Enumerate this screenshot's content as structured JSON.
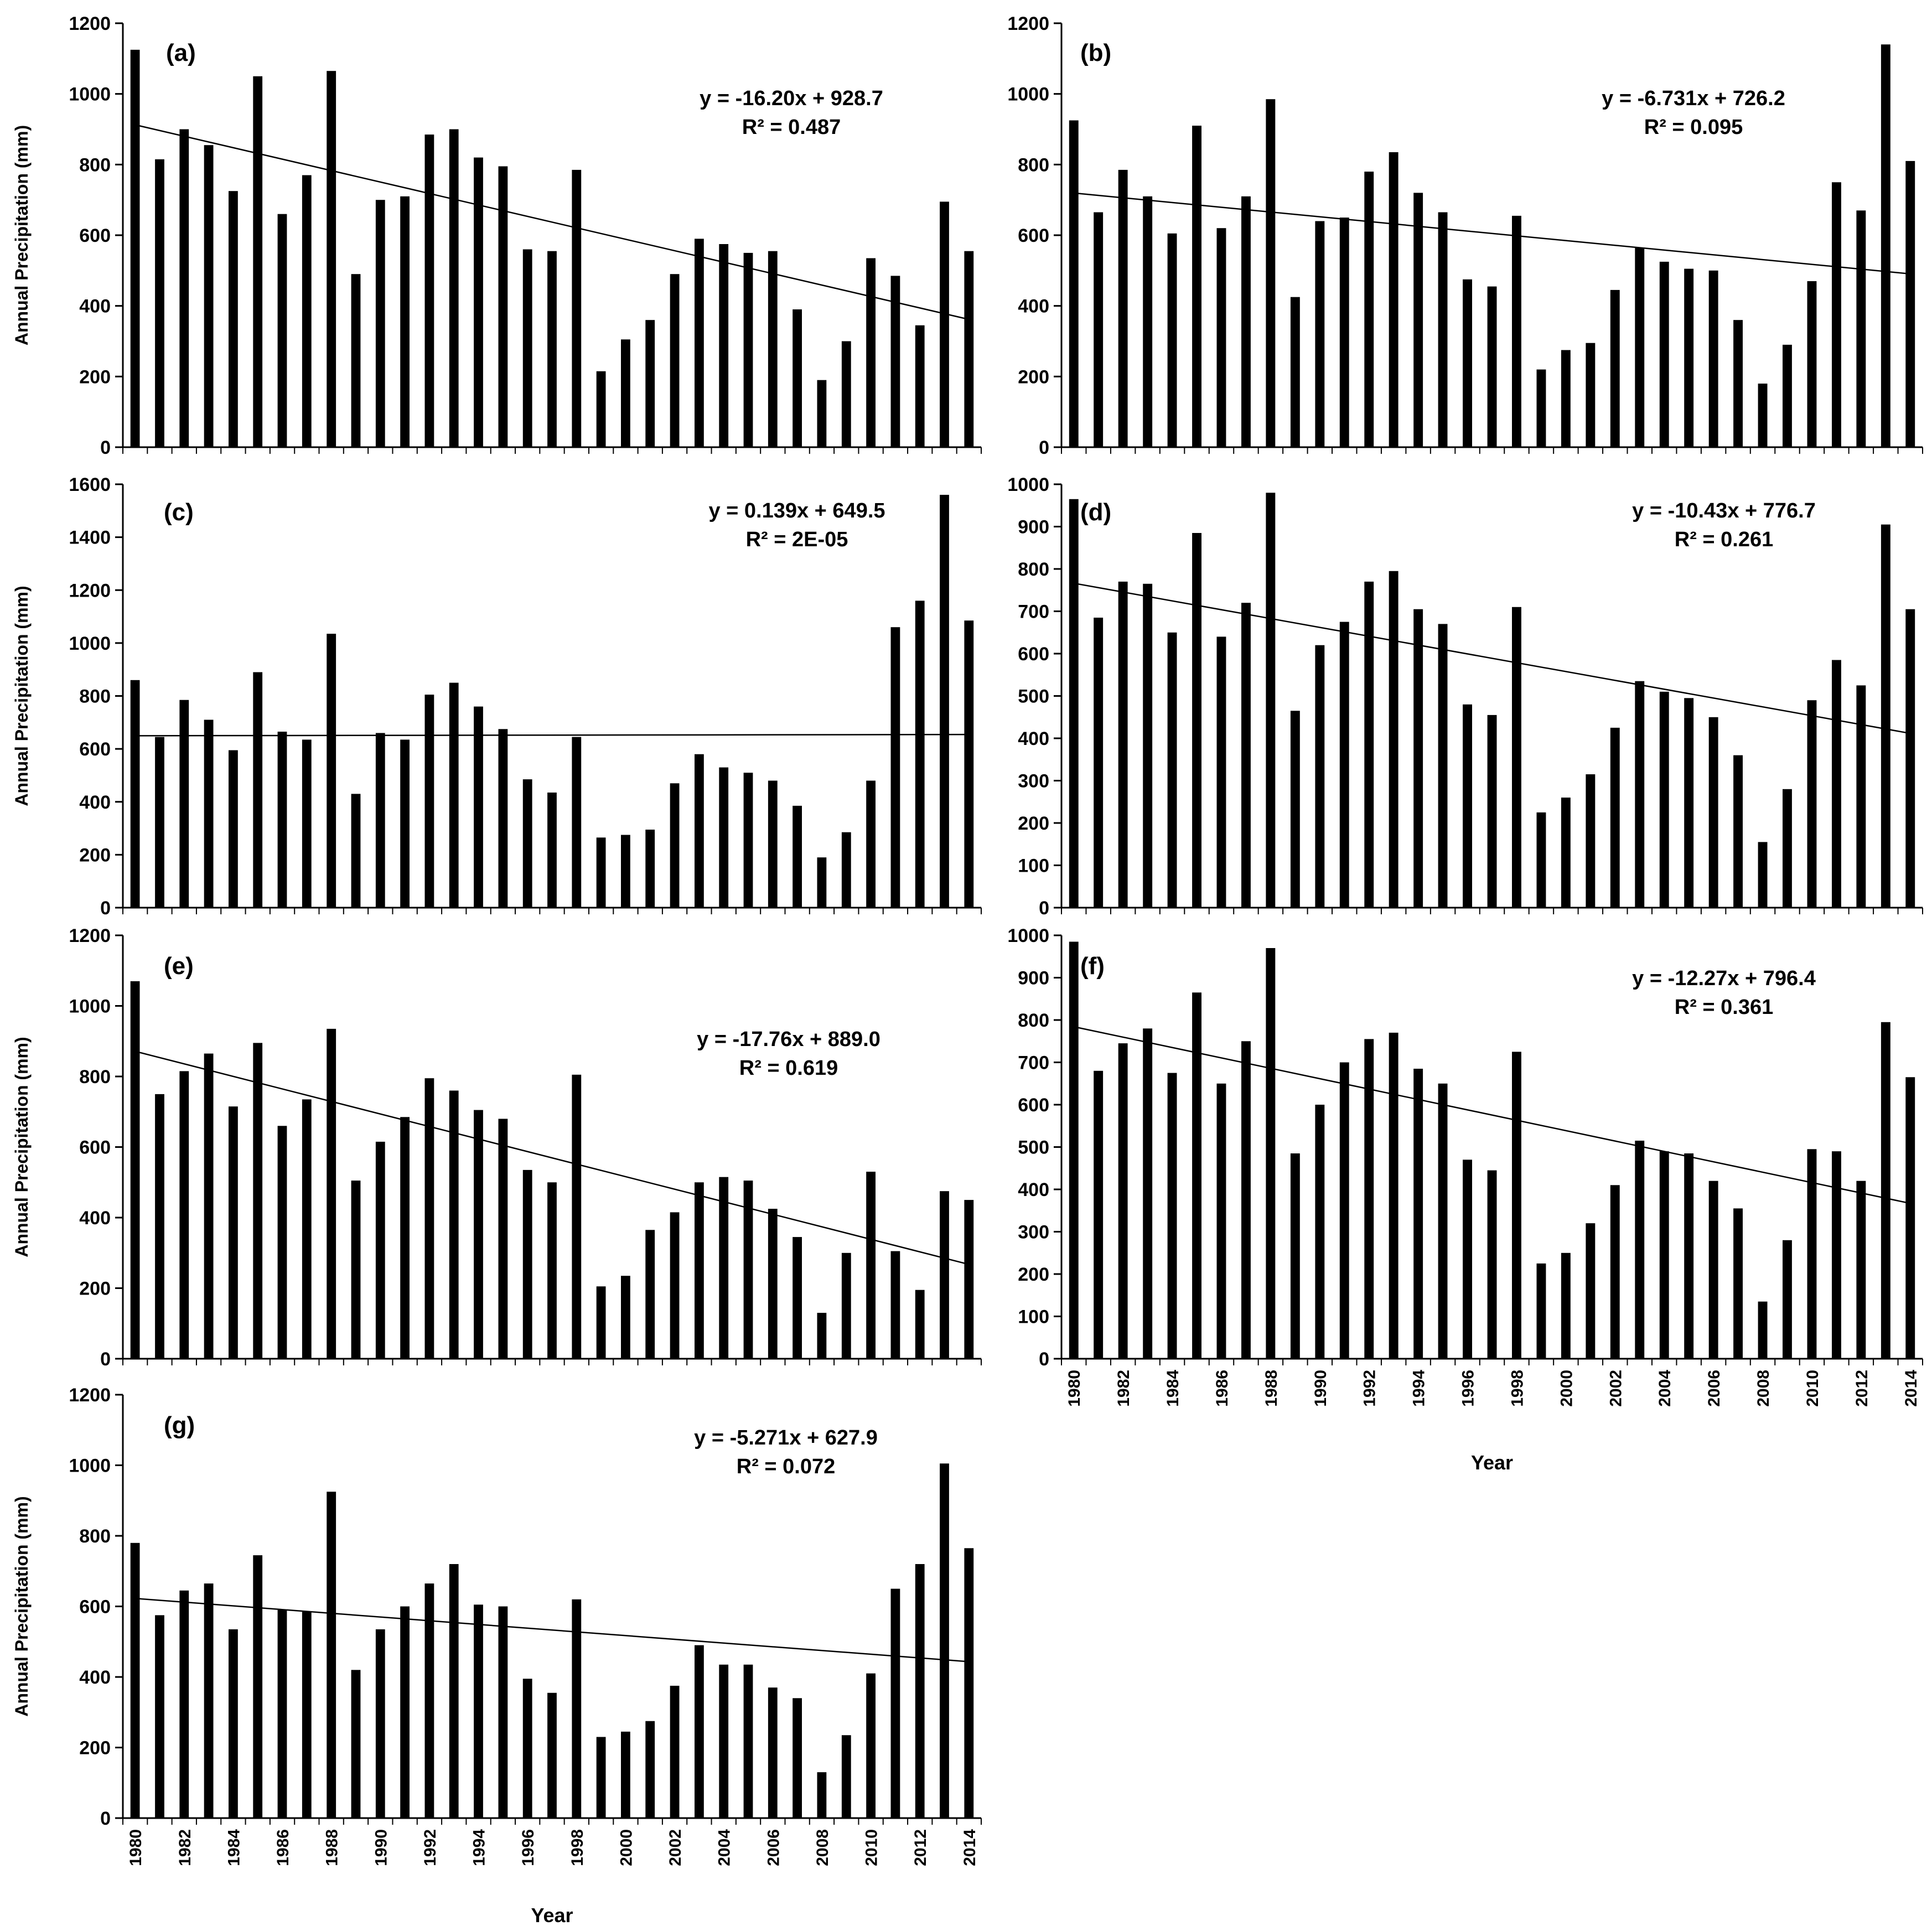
{
  "years": [
    1980,
    1981,
    1982,
    1983,
    1984,
    1985,
    1986,
    1987,
    1988,
    1989,
    1990,
    1991,
    1992,
    1993,
    1994,
    1995,
    1996,
    1997,
    1998,
    1999,
    2000,
    2001,
    2002,
    2003,
    2004,
    2005,
    2006,
    2007,
    2008,
    2009,
    2010,
    2011,
    2012,
    2013,
    2014
  ],
  "x_tick_labels": [
    "1980",
    "1982",
    "1984",
    "1986",
    "1988",
    "1990",
    "1992",
    "1994",
    "1996",
    "1998",
    "2000",
    "2002",
    "2004",
    "2006",
    "2008",
    "2010",
    "2012",
    "2014"
  ],
  "bar_color": "#000000",
  "chart_data": [
    {
      "type": "bar",
      "panel_label": "(a)",
      "ylabel": "Annual Precipitation (mm)",
      "xlabel": "",
      "ylim": [
        0,
        1200
      ],
      "yticks": [
        0,
        200,
        400,
        600,
        800,
        1000,
        1200
      ],
      "equation": "y = -16.20x + 928.7",
      "r2": "R² = 0.487",
      "trend": {
        "slope": -16.2,
        "intercept": 928.7
      },
      "values": [
        1125,
        815,
        900,
        855,
        725,
        1050,
        660,
        770,
        1065,
        490,
        700,
        710,
        885,
        900,
        820,
        795,
        560,
        555,
        785,
        215,
        305,
        360,
        490,
        590,
        575,
        550,
        555,
        390,
        190,
        300,
        535,
        485,
        345,
        695,
        555
      ]
    },
    {
      "type": "bar",
      "panel_label": "(b)",
      "ylabel": "",
      "xlabel": "",
      "ylim": [
        0,
        1200
      ],
      "yticks": [
        0,
        200,
        400,
        600,
        800,
        1000,
        1200
      ],
      "equation": "y = -6.731x + 726.2",
      "r2": "R² = 0.095",
      "trend": {
        "slope": -6.731,
        "intercept": 726.2
      },
      "values": [
        925,
        665,
        785,
        710,
        605,
        910,
        620,
        710,
        985,
        425,
        640,
        650,
        780,
        835,
        720,
        665,
        475,
        455,
        655,
        220,
        275,
        295,
        445,
        565,
        525,
        505,
        500,
        360,
        180,
        290,
        470,
        750,
        670,
        1140,
        810
      ]
    },
    {
      "type": "bar",
      "panel_label": "(c)",
      "ylabel": "Annual Precipitation (mm)",
      "xlabel": "",
      "ylim": [
        0,
        1600
      ],
      "yticks": [
        0,
        200,
        400,
        600,
        800,
        1000,
        1200,
        1400,
        1600
      ],
      "equation": "y = 0.139x + 649.5",
      "r2": "R² = 2E-05",
      "trend": {
        "slope": 0.139,
        "intercept": 649.5
      },
      "values": [
        860,
        645,
        785,
        710,
        595,
        890,
        665,
        635,
        1035,
        430,
        660,
        635,
        805,
        850,
        760,
        675,
        485,
        435,
        645,
        265,
        275,
        295,
        470,
        580,
        530,
        510,
        480,
        385,
        190,
        285,
        480,
        1060,
        1160,
        1560,
        1085
      ]
    },
    {
      "type": "bar",
      "panel_label": "(d)",
      "ylabel": "",
      "xlabel": "",
      "ylim": [
        0,
        1000
      ],
      "yticks": [
        0,
        100,
        200,
        300,
        400,
        500,
        600,
        700,
        800,
        900,
        1000
      ],
      "equation": "y = -10.43x + 776.7",
      "r2": "R² = 0.261",
      "trend": {
        "slope": -10.43,
        "intercept": 776.7
      },
      "values": [
        965,
        685,
        770,
        765,
        650,
        885,
        640,
        720,
        980,
        465,
        620,
        675,
        770,
        795,
        705,
        670,
        480,
        455,
        710,
        225,
        260,
        315,
        425,
        535,
        510,
        495,
        450,
        360,
        155,
        280,
        490,
        585,
        525,
        905,
        705
      ]
    },
    {
      "type": "bar",
      "panel_label": "(e)",
      "ylabel": "Annual Precipitation (mm)",
      "xlabel": "",
      "ylim": [
        0,
        1200
      ],
      "yticks": [
        0,
        200,
        400,
        600,
        800,
        1000,
        1200
      ],
      "equation": "y = -17.76x + 889.0",
      "r2": "R² = 0.619",
      "trend": {
        "slope": -17.76,
        "intercept": 889.0
      },
      "values": [
        1070,
        750,
        815,
        865,
        715,
        895,
        660,
        735,
        935,
        505,
        615,
        685,
        795,
        760,
        705,
        680,
        535,
        500,
        805,
        205,
        235,
        365,
        415,
        500,
        515,
        505,
        425,
        345,
        130,
        300,
        530,
        305,
        195,
        475,
        450
      ]
    },
    {
      "type": "bar",
      "panel_label": "(f)",
      "ylabel": "",
      "xlabel": "Year",
      "ylim": [
        0,
        1000
      ],
      "yticks": [
        0,
        100,
        200,
        300,
        400,
        500,
        600,
        700,
        800,
        900,
        1000
      ],
      "equation": "y = -12.27x + 796.4",
      "r2": "R² = 0.361",
      "trend": {
        "slope": -12.27,
        "intercept": 796.4
      },
      "values": [
        985,
        680,
        745,
        780,
        675,
        865,
        650,
        750,
        970,
        485,
        600,
        700,
        755,
        770,
        685,
        650,
        470,
        445,
        725,
        225,
        250,
        320,
        410,
        515,
        490,
        485,
        420,
        355,
        135,
        280,
        495,
        490,
        420,
        795,
        665
      ]
    },
    {
      "type": "bar",
      "panel_label": "(g)",
      "ylabel": "Annual Precipitation (mm)",
      "xlabel": "Year",
      "ylim": [
        0,
        1200
      ],
      "yticks": [
        0,
        200,
        400,
        600,
        800,
        1000,
        1200
      ],
      "equation": "y = -5.271x + 627.9",
      "r2": "R² = 0.072",
      "trend": {
        "slope": -5.271,
        "intercept": 627.9
      },
      "values": [
        780,
        575,
        645,
        665,
        535,
        745,
        590,
        585,
        925,
        420,
        535,
        600,
        665,
        720,
        605,
        600,
        395,
        355,
        620,
        230,
        245,
        275,
        375,
        490,
        435,
        435,
        370,
        340,
        130,
        235,
        410,
        650,
        720,
        1005,
        765
      ]
    }
  ]
}
